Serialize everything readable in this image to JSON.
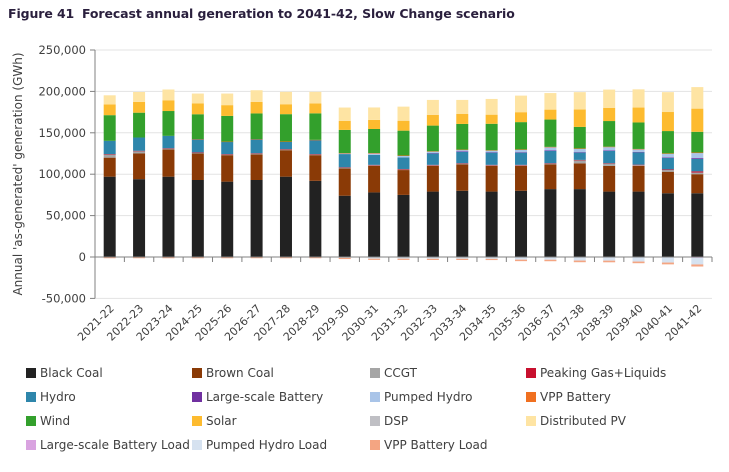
{
  "figure": {
    "number": "Figure 41",
    "title": "Forecast annual generation to 2041-42, Slow Change scenario"
  },
  "chart_data": {
    "type": "bar",
    "stacked": true,
    "title": "Forecast annual generation to 2041-42, Slow Change scenario",
    "xlabel": "",
    "ylabel": "Annual 'as-generated' generation (GWh)",
    "ylim": [
      -50000,
      250000
    ],
    "yticks": [
      -50000,
      0,
      50000,
      100000,
      150000,
      200000,
      250000
    ],
    "ytick_labels": [
      "-50,000",
      "0",
      "50,000",
      "100,000",
      "150,000",
      "200,000",
      "250,000"
    ],
    "grid": true,
    "legend_position": "bottom",
    "categories": [
      "2021-22",
      "2022-23",
      "2023-24",
      "2024-25",
      "2025-26",
      "2026-27",
      "2027-28",
      "2028-29",
      "2029-30",
      "2030-31",
      "2031-32",
      "2032-33",
      "2033-34",
      "2034-35",
      "2035-36",
      "2036-37",
      "2037-38",
      "2038-39",
      "2039-40",
      "2040-41",
      "2041-42"
    ],
    "series": [
      {
        "name": "Black Coal",
        "color": "#222222",
        "values": [
          97000,
          94000,
          97000,
          93000,
          91000,
          93000,
          97000,
          92000,
          74000,
          78000,
          75000,
          79000,
          80000,
          79000,
          80000,
          82000,
          82000,
          79000,
          79000,
          77000,
          77000
        ]
      },
      {
        "name": "Brown Coal",
        "color": "#8a3a06",
        "values": [
          23000,
          31000,
          33000,
          32000,
          32000,
          31000,
          32000,
          31000,
          33000,
          32000,
          30000,
          31000,
          32000,
          31000,
          30000,
          30000,
          31000,
          31000,
          31000,
          26000,
          23000
        ]
      },
      {
        "name": "CCGT",
        "color": "#a5a5a5",
        "values": [
          4000,
          3000,
          1000,
          1000,
          1000,
          1000,
          1000,
          1000,
          1000,
          1000,
          1000,
          1000,
          1000,
          1000,
          1000,
          1000,
          4000,
          3000,
          1000,
          2000,
          2000
        ]
      },
      {
        "name": "Peaking Gas+Liquids",
        "color": "#c8102e",
        "values": [
          300,
          300,
          300,
          300,
          300,
          300,
          300,
          300,
          300,
          300,
          300,
          300,
          300,
          300,
          300,
          300,
          300,
          300,
          500,
          800,
          1500
        ]
      },
      {
        "name": "Hydro",
        "color": "#2e86ab",
        "values": [
          16000,
          16000,
          15000,
          16000,
          15000,
          17000,
          9000,
          17000,
          16000,
          12000,
          14000,
          14000,
          14000,
          15000,
          15000,
          15000,
          9000,
          15000,
          15000,
          14000,
          15000
        ]
      },
      {
        "name": "Large-scale Battery",
        "color": "#7030a0",
        "values": [
          0,
          0,
          0,
          0,
          0,
          0,
          0,
          0,
          0,
          0,
          0,
          100,
          100,
          200,
          200,
          300,
          300,
          400,
          500,
          700,
          1000
        ]
      },
      {
        "name": "Pumped Hydro",
        "color": "#a9c4e8",
        "values": [
          0,
          0,
          0,
          0,
          0,
          0,
          0,
          0,
          1000,
          2000,
          2000,
          2000,
          2000,
          2000,
          3000,
          4000,
          4000,
          4000,
          3000,
          4000,
          6000
        ]
      },
      {
        "name": "VPP Battery",
        "color": "#f07020",
        "values": [
          0,
          0,
          0,
          100,
          100,
          100,
          200,
          200,
          200,
          300,
          300,
          300,
          300,
          400,
          400,
          400,
          500,
          500,
          500,
          600,
          700
        ]
      },
      {
        "name": "Wind",
        "color": "#33a02c",
        "values": [
          31000,
          30000,
          30000,
          30000,
          31000,
          31000,
          33000,
          32000,
          28000,
          29000,
          30000,
          31000,
          31000,
          32000,
          33000,
          33000,
          26000,
          31000,
          32000,
          27000,
          25000
        ]
      },
      {
        "name": "Solar",
        "color": "#fdbb2f",
        "values": [
          13000,
          13000,
          13000,
          13000,
          13000,
          14000,
          12000,
          12000,
          11000,
          11000,
          12000,
          13000,
          12000,
          11000,
          12000,
          12000,
          21000,
          16000,
          18000,
          23000,
          28000
        ]
      },
      {
        "name": "DSP",
        "color": "#bfbfc4",
        "values": [
          0,
          0,
          0,
          0,
          0,
          0,
          0,
          0,
          0,
          0,
          0,
          0,
          0,
          0,
          0,
          0,
          0,
          0,
          0,
          0,
          0
        ]
      },
      {
        "name": "Distributed PV",
        "color": "#fee4a3",
        "values": [
          11000,
          12000,
          13000,
          12000,
          14000,
          14000,
          15000,
          14000,
          16000,
          15000,
          17000,
          18000,
          17000,
          19000,
          20000,
          20000,
          21000,
          22000,
          22000,
          24000,
          26000
        ]
      },
      {
        "name": "Large-scale Battery Load",
        "color": "#d9a3e0",
        "values": [
          0,
          0,
          0,
          0,
          0,
          0,
          0,
          0,
          0,
          0,
          0,
          -100,
          -100,
          -200,
          -200,
          -300,
          -300,
          -400,
          -500,
          -700,
          -1000
        ]
      },
      {
        "name": "Pumped Hydro Load",
        "color": "#d6e2f0",
        "values": [
          0,
          0,
          0,
          0,
          0,
          0,
          0,
          0,
          -1000,
          -2000,
          -2000,
          -2000,
          -2000,
          -2000,
          -3000,
          -3000,
          -4000,
          -4000,
          -5000,
          -6000,
          -8000
        ]
      },
      {
        "name": "VPP Battery Load",
        "color": "#f4a582",
        "values": [
          -1500,
          -1500,
          -1500,
          -1500,
          -1500,
          -1500,
          -1500,
          -1500,
          -1500,
          -1500,
          -1500,
          -1500,
          -1500,
          -1500,
          -1800,
          -1800,
          -2000,
          -2000,
          -2000,
          -2200,
          -2500
        ]
      }
    ]
  },
  "legend": {
    "items": [
      {
        "label": "Black Coal",
        "color": "#222222"
      },
      {
        "label": "Brown Coal",
        "color": "#8a3a06"
      },
      {
        "label": "CCGT",
        "color": "#a5a5a5"
      },
      {
        "label": "Peaking Gas+Liquids",
        "color": "#c8102e"
      },
      {
        "label": "Hydro",
        "color": "#2e86ab"
      },
      {
        "label": "Large-scale Battery",
        "color": "#7030a0"
      },
      {
        "label": "Pumped Hydro",
        "color": "#a9c4e8"
      },
      {
        "label": "VPP Battery",
        "color": "#f07020"
      },
      {
        "label": "Wind",
        "color": "#33a02c"
      },
      {
        "label": "Solar",
        "color": "#fdbb2f"
      },
      {
        "label": "DSP",
        "color": "#bfbfc4"
      },
      {
        "label": "Distributed PV",
        "color": "#fee4a3"
      },
      {
        "label": "Large-scale Battery Load",
        "color": "#d9a3e0"
      },
      {
        "label": "Pumped Hydro Load",
        "color": "#d6e2f0"
      },
      {
        "label": "VPP Battery Load",
        "color": "#f4a582"
      }
    ]
  }
}
